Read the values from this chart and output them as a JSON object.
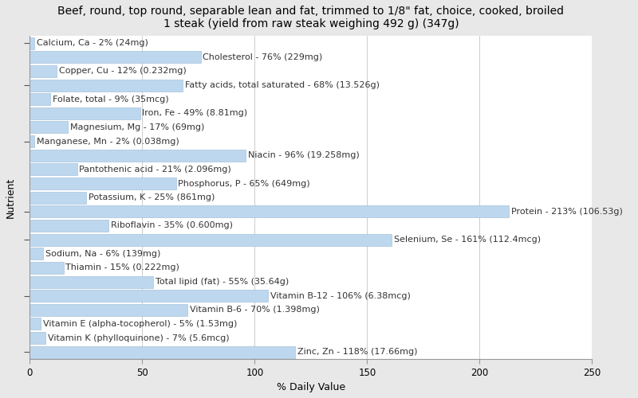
{
  "title": "Beef, round, top round, separable lean and fat, trimmed to 1/8\" fat, choice, cooked, broiled\n1 steak (yield from raw steak weighing 492 g) (347g)",
  "xlabel": "% Daily Value",
  "ylabel": "Nutrient",
  "nutrients": [
    "Calcium, Ca - 2% (24mg)",
    "Cholesterol - 76% (229mg)",
    "Copper, Cu - 12% (0.232mg)",
    "Fatty acids, total saturated - 68% (13.526g)",
    "Folate, total - 9% (35mcg)",
    "Iron, Fe - 49% (8.81mg)",
    "Magnesium, Mg - 17% (69mg)",
    "Manganese, Mn - 2% (0.038mg)",
    "Niacin - 96% (19.258mg)",
    "Pantothenic acid - 21% (2.096mg)",
    "Phosphorus, P - 65% (649mg)",
    "Potassium, K - 25% (861mg)",
    "Protein - 213% (106.53g)",
    "Riboflavin - 35% (0.600mg)",
    "Selenium, Se - 161% (112.4mcg)",
    "Sodium, Na - 6% (139mg)",
    "Thiamin - 15% (0.222mg)",
    "Total lipid (fat) - 55% (35.64g)",
    "Vitamin B-12 - 106% (6.38mcg)",
    "Vitamin B-6 - 70% (1.398mg)",
    "Vitamin E (alpha-tocopherol) - 5% (1.53mg)",
    "Vitamin K (phylloquinone) - 7% (5.6mcg)",
    "Zinc, Zn - 118% (17.66mg)"
  ],
  "values": [
    2,
    76,
    12,
    68,
    9,
    49,
    17,
    2,
    96,
    21,
    65,
    25,
    213,
    35,
    161,
    6,
    15,
    55,
    106,
    70,
    5,
    7,
    118
  ],
  "bar_color": "#bdd7ee",
  "bar_edge_color": "#9ab8d4",
  "background_color": "#e8e8e8",
  "plot_bg_color": "#ffffff",
  "title_fontsize": 10,
  "axis_label_fontsize": 9,
  "tick_fontsize": 8.5,
  "bar_label_fontsize": 8,
  "xlim": [
    0,
    250
  ],
  "xticks": [
    0,
    50,
    100,
    150,
    200,
    250
  ],
  "label_color": "#333333",
  "grid_color": "#cccccc"
}
